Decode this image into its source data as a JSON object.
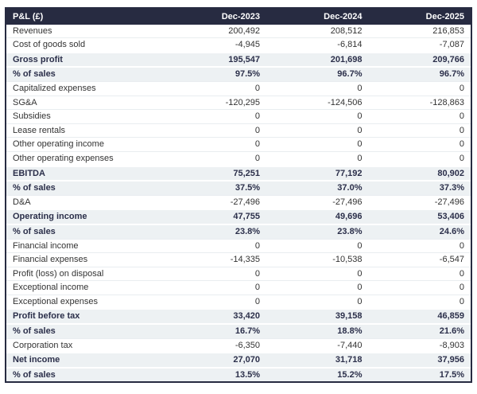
{
  "colors": {
    "header_bg": "#272b41",
    "header_text": "#ffffff",
    "total_row_bg": "#edf1f3",
    "total_row_text": "#2b2f4a",
    "item_row_text": "#333333",
    "outer_border": "#272b41"
  },
  "chart_data": {
    "type": "table",
    "title": "P&L (£)",
    "currency": "£",
    "columns": [
      "P&L (£)",
      "Dec-2023",
      "Dec-2024",
      "Dec-2025"
    ],
    "rows": [
      {
        "label": "Revenues",
        "values": [
          "200,492",
          "208,512",
          "216,853"
        ],
        "emphasis": false
      },
      {
        "label": "Cost of goods sold",
        "values": [
          "-4,945",
          "-6,814",
          "-7,087"
        ],
        "emphasis": false
      },
      {
        "label": "Gross profit",
        "values": [
          "195,547",
          "201,698",
          "209,766"
        ],
        "emphasis": true
      },
      {
        "label": "% of sales",
        "values": [
          "97.5%",
          "96.7%",
          "96.7%"
        ],
        "emphasis": true
      },
      {
        "label": "Capitalized expenses",
        "values": [
          "0",
          "0",
          "0"
        ],
        "emphasis": false
      },
      {
        "label": "SG&A",
        "values": [
          "-120,295",
          "-124,506",
          "-128,863"
        ],
        "emphasis": false
      },
      {
        "label": "Subsidies",
        "values": [
          "0",
          "0",
          "0"
        ],
        "emphasis": false
      },
      {
        "label": "Lease rentals",
        "values": [
          "0",
          "0",
          "0"
        ],
        "emphasis": false
      },
      {
        "label": "Other operating income",
        "values": [
          "0",
          "0",
          "0"
        ],
        "emphasis": false
      },
      {
        "label": "Other operating expenses",
        "values": [
          "0",
          "0",
          "0"
        ],
        "emphasis": false
      },
      {
        "label": "EBITDA",
        "values": [
          "75,251",
          "77,192",
          "80,902"
        ],
        "emphasis": true
      },
      {
        "label": "% of sales",
        "values": [
          "37.5%",
          "37.0%",
          "37.3%"
        ],
        "emphasis": true
      },
      {
        "label": "D&A",
        "values": [
          "-27,496",
          "-27,496",
          "-27,496"
        ],
        "emphasis": false
      },
      {
        "label": "Operating income",
        "values": [
          "47,755",
          "49,696",
          "53,406"
        ],
        "emphasis": true
      },
      {
        "label": "% of sales",
        "values": [
          "23.8%",
          "23.8%",
          "24.6%"
        ],
        "emphasis": true
      },
      {
        "label": "Financial income",
        "values": [
          "0",
          "0",
          "0"
        ],
        "emphasis": false
      },
      {
        "label": "Financial expenses",
        "values": [
          "-14,335",
          "-10,538",
          "-6,547"
        ],
        "emphasis": false
      },
      {
        "label": "Profit (loss) on disposal",
        "values": [
          "0",
          "0",
          "0"
        ],
        "emphasis": false
      },
      {
        "label": "Exceptional income",
        "values": [
          "0",
          "0",
          "0"
        ],
        "emphasis": false
      },
      {
        "label": "Exceptional expenses",
        "values": [
          "0",
          "0",
          "0"
        ],
        "emphasis": false
      },
      {
        "label": "Profit before tax",
        "values": [
          "33,420",
          "39,158",
          "46,859"
        ],
        "emphasis": true
      },
      {
        "label": "% of sales",
        "values": [
          "16.7%",
          "18.8%",
          "21.6%"
        ],
        "emphasis": true
      },
      {
        "label": "Corporation tax",
        "values": [
          "-6,350",
          "-7,440",
          "-8,903"
        ],
        "emphasis": false
      },
      {
        "label": "Net income",
        "values": [
          "27,070",
          "31,718",
          "37,956"
        ],
        "emphasis": true
      },
      {
        "label": "% of sales",
        "values": [
          "13.5%",
          "15.2%",
          "17.5%"
        ],
        "emphasis": true
      }
    ]
  }
}
